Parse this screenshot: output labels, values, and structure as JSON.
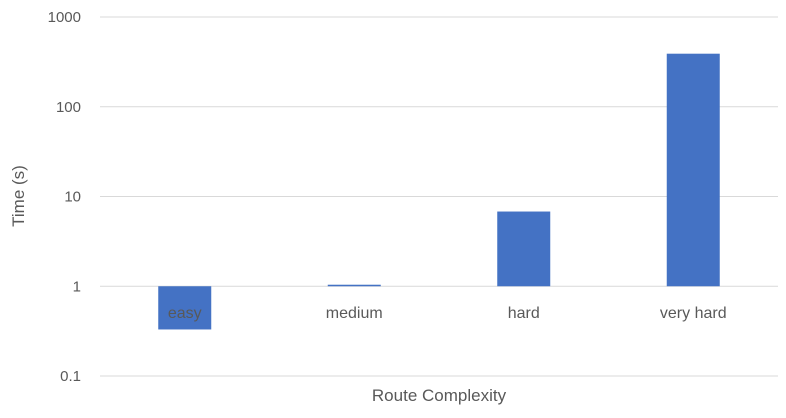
{
  "chart_data": {
    "type": "bar",
    "title": "",
    "xlabel": "Route Complexity",
    "ylabel": "Time (s)",
    "y_scale": "log",
    "ylim": [
      0.1,
      1000
    ],
    "y_ticks": [
      "0.1",
      "1",
      "10",
      "100",
      "1000"
    ],
    "y_tick_values": [
      0.1,
      1,
      10,
      100,
      1000
    ],
    "categories": [
      "easy",
      "medium",
      "hard",
      "very hard"
    ],
    "series": [
      {
        "values": [
          0.33,
          1.04,
          6.8,
          390
        ]
      }
    ],
    "grid": true,
    "legend": "none",
    "bar_color": "#4472C4",
    "grid_color": "#d9d9d9"
  }
}
